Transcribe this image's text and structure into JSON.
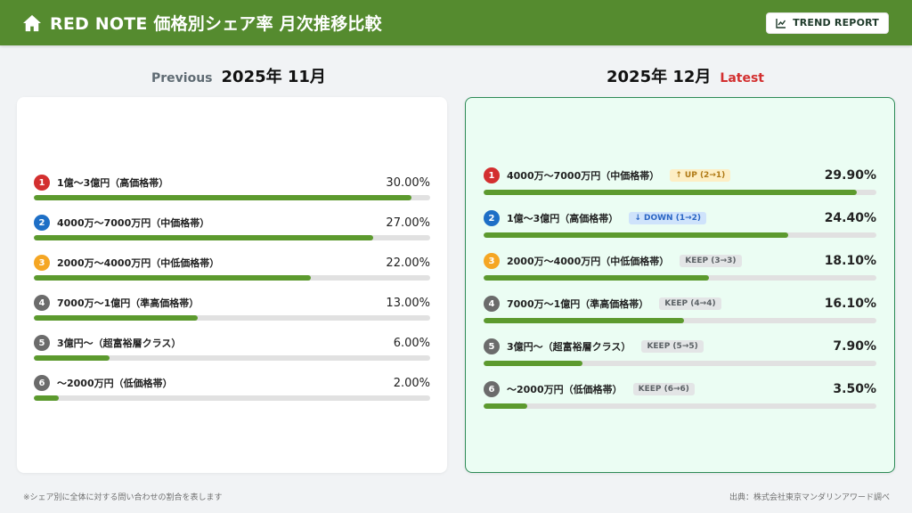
{
  "header": {
    "title": "RED NOTE 価格別シェア率 月次推移比較",
    "home_icon": "home-icon",
    "trend_button_label": "TREND REPORT",
    "trend_icon": "line-chart-icon",
    "bg_color": "#558b2f"
  },
  "previous": {
    "tag": "Previous",
    "month": "2025年 11月",
    "items": [
      {
        "rank": "1",
        "rank_color": "#d32f2f",
        "label": "1億〜3億円（高価格帯）",
        "pct": "30.00%",
        "value": 30.0
      },
      {
        "rank": "2",
        "rank_color": "#1e6fc6",
        "label": "4000万〜7000万円（中価格帯）",
        "pct": "27.00%",
        "value": 27.0
      },
      {
        "rank": "3",
        "rank_color": "#f5a623",
        "label": "2000万〜4000万円（中低価格帯）",
        "pct": "22.00%",
        "value": 22.0
      },
      {
        "rank": "4",
        "rank_color": "#6b6b6b",
        "label": "7000万〜1億円（準高価格帯）",
        "pct": "13.00%",
        "value": 13.0
      },
      {
        "rank": "5",
        "rank_color": "#6b6b6b",
        "label": "3億円〜（超富裕層クラス）",
        "pct": "6.00%",
        "value": 6.0
      },
      {
        "rank": "6",
        "rank_color": "#6b6b6b",
        "label": "〜2000万円（低価格帯）",
        "pct": "2.00%",
        "value": 2.0
      }
    ]
  },
  "latest": {
    "tag": "Latest",
    "month": "2025年 12月",
    "items": [
      {
        "rank": "1",
        "rank_color": "#d32f2f",
        "label": "4000万〜7000万円（中価格帯）",
        "badge": "↑ UP (2→1)",
        "badge_type": "up",
        "pct": "29.90%",
        "value": 29.9
      },
      {
        "rank": "2",
        "rank_color": "#1e6fc6",
        "label": "1億〜3億円（高価格帯）",
        "badge": "↓ DOWN (1→2)",
        "badge_type": "down",
        "pct": "24.40%",
        "value": 24.4
      },
      {
        "rank": "3",
        "rank_color": "#f5a623",
        "label": "2000万〜4000万円（中低価格帯）",
        "badge": "KEEP (3→3)",
        "badge_type": "keep",
        "pct": "18.10%",
        "value": 18.1
      },
      {
        "rank": "4",
        "rank_color": "#6b6b6b",
        "label": "7000万〜1億円（準高価格帯）",
        "badge": "KEEP (4→4)",
        "badge_type": "keep",
        "pct": "16.10%",
        "value": 16.1
      },
      {
        "rank": "5",
        "rank_color": "#6b6b6b",
        "label": "3億円〜（超富裕層クラス）",
        "badge": "KEEP (5→5)",
        "badge_type": "keep",
        "pct": "7.90%",
        "value": 7.9
      },
      {
        "rank": "6",
        "rank_color": "#6b6b6b",
        "label": "〜2000万円（低価格帯）",
        "badge": "KEEP (6→6)",
        "badge_type": "keep",
        "pct": "3.50%",
        "value": 3.5
      }
    ]
  },
  "footer": {
    "note": "※シェア別に全体に対する問い合わせの割合を表します",
    "source": "出典：株式会社東京マンダリンアワード調べ"
  },
  "colors": {
    "bar_fill": "#5c9a2e",
    "bar_track": "#e1e1e1",
    "latest_card_bg": "#ebfdf3",
    "latest_card_border": "#2e8b57",
    "latest_tag": "#d32f2f"
  },
  "chart_data": [
    {
      "type": "bar",
      "orientation": "horizontal",
      "title": "Previous 2025年 11月",
      "categories": [
        "1億〜3億円（高価格帯）",
        "4000万〜7000万円（中価格帯）",
        "2000万〜4000万円（中低価格帯）",
        "7000万〜1億円（準高価格帯）",
        "3億円〜（超富裕層クラス）",
        "〜2000万円（低価格帯）"
      ],
      "values": [
        30.0,
        27.0,
        22.0,
        13.0,
        6.0,
        2.0
      ],
      "unit": "%",
      "grid": false,
      "legend": null
    },
    {
      "type": "bar",
      "orientation": "horizontal",
      "title": "2025年 12月 Latest",
      "categories": [
        "4000万〜7000万円（中価格帯）",
        "1億〜3億円（高価格帯）",
        "2000万〜4000万円（中低価格帯）",
        "7000万〜1億円（準高価格帯）",
        "3億円〜（超富裕層クラス）",
        "〜2000万円（低価格帯）"
      ],
      "values": [
        29.9,
        24.4,
        18.1,
        16.1,
        7.9,
        3.5
      ],
      "rank_changes": [
        "↑ UP (2→1)",
        "↓ DOWN (1→2)",
        "KEEP (3→3)",
        "KEEP (4→4)",
        "KEEP (5→5)",
        "KEEP (6→6)"
      ],
      "unit": "%",
      "grid": false,
      "legend": null
    }
  ]
}
